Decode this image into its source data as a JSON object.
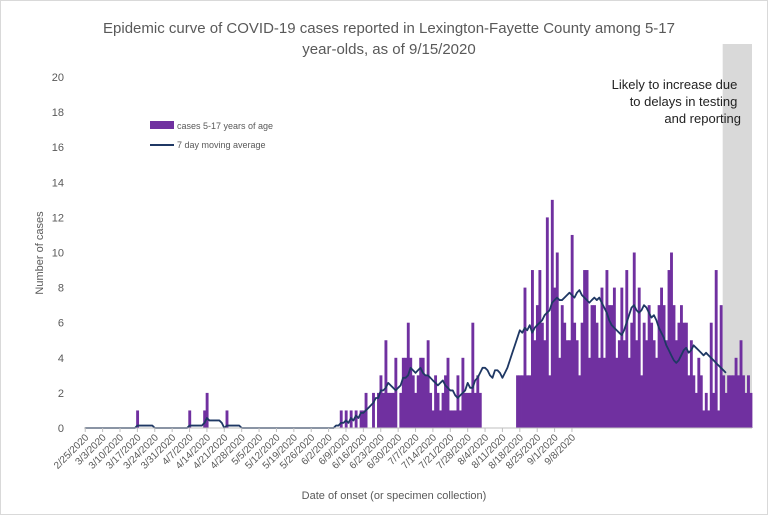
{
  "chart_data": {
    "type": "bar",
    "title_line1": "Epidemic curve of COVID-19 cases reported in Lexington-Fayette County among 5-17",
    "title_line2": "year-olds, as of 9/15/2020",
    "xlabel": "Date of onset (or specimen collection)",
    "ylabel": "Number of cases",
    "ylim": [
      0,
      20
    ],
    "yticks": [
      "0",
      "2",
      "4",
      "6",
      "8",
      "10",
      "12",
      "14",
      "16",
      "18",
      "20"
    ],
    "start_date": "2/25/2020",
    "x_tick_labels": [
      "2/25/2020",
      "3/3/2020",
      "3/10/2020",
      "3/17/2020",
      "3/24/2020",
      "3/31/2020",
      "4/7/2020",
      "4/14/2020",
      "4/21/2020",
      "4/28/2020",
      "5/5/2020",
      "5/12/2020",
      "5/19/2020",
      "5/26/2020",
      "6/2/2020",
      "6/9/2020",
      "6/16/2020",
      "6/23/2020",
      "6/30/2020",
      "7/7/2020",
      "7/14/2020",
      "7/21/2020",
      "7/28/2020",
      "8/4/2020",
      "8/11/2020",
      "8/18/2020",
      "8/25/2020",
      "9/1/2020",
      "9/8/2020"
    ],
    "grid": false,
    "legend_position": "top-left",
    "shaded_region_note": "Likely to increase due to delays in testing and reporting",
    "colors": {
      "bars": "#7030a0",
      "line": "#1f3864",
      "shade": "#d9d9d9",
      "text": "#595959",
      "axis": "#bfbfbf"
    },
    "series": [
      {
        "name": "cases 5-17 years of age",
        "type": "bar",
        "values": [
          0,
          0,
          0,
          0,
          0,
          0,
          0,
          0,
          0,
          0,
          0,
          0,
          0,
          0,
          0,
          0,
          0,
          0,
          0,
          0,
          0,
          1,
          0,
          0,
          0,
          0,
          0,
          0,
          0,
          0,
          0,
          0,
          0,
          0,
          0,
          0,
          0,
          0,
          0,
          0,
          0,
          0,
          1,
          0,
          0,
          0,
          0,
          0,
          1,
          2,
          0,
          0,
          0,
          0,
          0,
          0,
          0,
          1,
          0,
          0,
          0,
          0,
          0,
          0,
          0,
          0,
          0,
          0,
          0,
          0,
          0,
          0,
          0,
          0,
          0,
          0,
          0,
          0,
          0,
          0,
          0,
          0,
          0,
          0,
          0,
          0,
          0,
          0,
          0,
          0,
          0,
          0,
          0,
          0,
          0,
          0,
          0,
          0,
          0,
          0,
          0,
          0,
          0,
          1,
          0,
          1,
          0,
          1,
          0,
          1,
          0,
          1,
          1,
          2,
          0,
          0,
          2,
          0,
          2,
          3,
          2,
          5,
          2,
          2,
          2,
          4,
          0,
          2,
          4,
          4,
          6,
          4,
          3,
          2,
          3,
          4,
          4,
          3,
          5,
          2,
          1,
          3,
          2,
          1,
          2,
          3,
          4,
          1,
          1,
          1,
          3,
          1,
          4,
          2,
          2,
          2,
          6,
          2,
          3,
          2,
          0,
          0,
          0,
          0,
          0,
          0,
          0,
          0,
          0,
          0,
          0,
          0,
          0,
          0,
          3,
          3,
          3,
          8,
          3,
          3,
          9,
          5,
          7,
          9,
          6,
          5,
          12,
          3,
          13,
          8,
          10,
          4,
          7,
          6,
          5,
          5,
          11,
          6,
          5,
          3,
          6,
          9,
          9,
          4,
          7,
          7,
          6,
          4,
          8,
          4,
          9,
          7,
          7,
          8,
          4,
          5,
          8,
          5,
          9,
          4,
          6,
          10,
          5,
          8,
          3,
          6,
          5,
          7,
          6,
          5,
          4,
          7,
          8,
          7,
          5,
          9,
          10,
          7,
          5,
          6,
          7,
          6,
          6,
          3,
          5,
          3,
          2,
          4,
          3,
          1,
          2,
          1,
          6,
          2,
          9,
          1,
          7,
          3,
          2,
          3,
          3,
          3,
          4,
          3,
          5,
          3,
          2,
          3,
          2
        ]
      },
      {
        "name": "7 day moving average",
        "type": "line",
        "values": [
          0,
          0,
          0,
          0,
          0,
          0,
          0,
          0,
          0,
          0,
          0,
          0,
          0,
          0,
          0,
          0,
          0,
          0,
          0,
          0,
          0,
          0.14,
          0.14,
          0.14,
          0.14,
          0.14,
          0.14,
          0.14,
          0,
          0,
          0,
          0,
          0,
          0,
          0,
          0,
          0,
          0,
          0,
          0,
          0,
          0,
          0.14,
          0.14,
          0.14,
          0.14,
          0.14,
          0.14,
          0.29,
          0.57,
          0.43,
          0.43,
          0.43,
          0.43,
          0.43,
          0.29,
          0,
          0.14,
          0.14,
          0.14,
          0.14,
          0.14,
          0.14,
          0,
          0,
          0,
          0,
          0,
          0,
          0,
          0,
          0,
          0,
          0,
          0,
          0,
          0,
          0,
          0,
          0,
          0,
          0,
          0,
          0,
          0,
          0,
          0,
          0,
          0,
          0,
          0,
          0,
          0,
          0,
          0,
          0,
          0,
          0,
          0,
          0,
          0,
          0.14,
          0.14,
          0.29,
          0.29,
          0.43,
          0.29,
          0.57,
          0.43,
          0.71,
          0.57,
          0.86,
          0.86,
          1,
          1.14,
          1.29,
          1.43,
          1.71,
          1.71,
          2.14,
          2.14,
          2.29,
          2.57,
          2.43,
          2.29,
          2.14,
          2.29,
          2.43,
          2.86,
          2.86,
          3,
          3.43,
          3.29,
          3.14,
          3.29,
          3.43,
          3.14,
          3,
          3,
          2.86,
          2.71,
          2.57,
          2.43,
          2.57,
          2.71,
          2.43,
          2.29,
          2.14,
          2.14,
          1.86,
          1.71,
          1.86,
          2,
          2.14,
          2.57,
          2.29,
          2.29,
          2.71,
          2.86,
          3.14,
          3.43,
          3.43,
          3.29,
          3,
          2.86,
          3.29,
          3.29,
          3.14,
          2.86,
          3.14,
          3.43,
          3.86,
          4.29,
          4.71,
          5.14,
          5.57,
          5.43,
          5.71,
          5.57,
          5.86,
          5.43,
          5.71,
          5.86,
          6,
          6.14,
          6.43,
          6.57,
          6.71,
          7.14,
          7.29,
          7.43,
          7.29,
          7.29,
          7.43,
          7.57,
          7.71,
          7.57,
          7.43,
          7.71,
          7.86,
          7.57,
          7.43,
          7.29,
          7.14,
          7.29,
          7.43,
          7.29,
          7.43,
          7.14,
          6.86,
          6.57,
          6.14,
          5.86,
          5.71,
          5.57,
          5.43,
          5.29,
          5.57,
          6,
          6.43,
          6.86,
          7,
          6.71,
          6.57,
          6.71,
          7,
          6.86,
          6.57,
          6.29,
          6.43,
          6.14,
          5.71,
          5.43,
          5.14,
          4.71,
          4.43,
          4.14,
          3.86,
          3.71,
          3.86,
          4.14,
          4.43,
          4.57,
          4.29,
          4.43,
          4.71,
          4.57,
          4.43,
          4.29,
          4.14,
          4.29,
          4.14,
          4,
          3.86,
          3.71,
          3.57,
          3.43,
          3.29,
          3.14
        ]
      }
    ]
  }
}
